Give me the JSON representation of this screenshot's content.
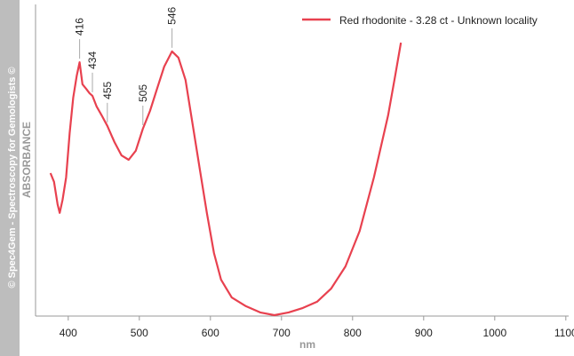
{
  "chart_data": {
    "type": "line",
    "watermark": "© Spec4Gem - Spectroscopy for Gemologists ©",
    "x_label": "nm",
    "y_label": "ABSORBANCE",
    "xlim": [
      354,
      1104
    ],
    "ylim": [
      0,
      1
    ],
    "xticks": [
      400,
      500,
      600,
      700,
      800,
      900,
      1000,
      1100
    ],
    "peak_labels": [
      416,
      434,
      455,
      505,
      546
    ],
    "legend_position": "upper right",
    "series": [
      {
        "name": "Red rhodonite - 3.28 ct - Unknown locality",
        "color": "#e8414f",
        "x": [
          375,
          380,
          385,
          388,
          392,
          397,
          402,
          407,
          412,
          416,
          420,
          425,
          430,
          434,
          440,
          447,
          455,
          465,
          475,
          485,
          495,
          505,
          515,
          525,
          535,
          546,
          555,
          565,
          575,
          585,
          595,
          605,
          615,
          630,
          650,
          670,
          690,
          710,
          730,
          750,
          770,
          790,
          810,
          830,
          850,
          860,
          868
        ],
        "values": [
          0.457,
          0.429,
          0.357,
          0.329,
          0.371,
          0.443,
          0.586,
          0.7,
          0.771,
          0.814,
          0.743,
          0.729,
          0.714,
          0.706,
          0.671,
          0.643,
          0.609,
          0.557,
          0.514,
          0.5,
          0.529,
          0.6,
          0.657,
          0.729,
          0.8,
          0.849,
          0.829,
          0.757,
          0.614,
          0.471,
          0.329,
          0.2,
          0.114,
          0.057,
          0.029,
          0.009,
          0,
          0.009,
          0.023,
          0.043,
          0.086,
          0.157,
          0.271,
          0.443,
          0.643,
          0.771,
          0.877
        ]
      }
    ]
  }
}
